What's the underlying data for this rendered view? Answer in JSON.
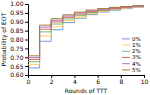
{
  "chart_data": {
    "type": "step",
    "xlabel": "Rounds of TTT",
    "ylabel": "Probability of EOT",
    "x": [
      0,
      1,
      2,
      3,
      4,
      5,
      6,
      7,
      8,
      9,
      10
    ],
    "series": [
      {
        "name": "0%",
        "color": "#7799cc",
        "values": [
          0.64,
          0.79,
          0.855,
          0.895,
          0.92,
          0.94,
          0.955,
          0.965,
          0.974,
          0.982,
          0.988
        ]
      },
      {
        "name": "1%",
        "color": "#ffcc66",
        "values": [
          0.66,
          0.82,
          0.872,
          0.906,
          0.928,
          0.946,
          0.959,
          0.969,
          0.977,
          0.984,
          0.99
        ]
      },
      {
        "name": "2%",
        "color": "#77bb77",
        "values": [
          0.675,
          0.843,
          0.887,
          0.916,
          0.936,
          0.952,
          0.963,
          0.972,
          0.98,
          0.986,
          0.991
        ]
      },
      {
        "name": "3%",
        "color": "#dd6655",
        "values": [
          0.688,
          0.858,
          0.899,
          0.925,
          0.943,
          0.957,
          0.967,
          0.975,
          0.982,
          0.987,
          0.992
        ]
      },
      {
        "name": "4%",
        "color": "#aa77cc",
        "values": [
          0.698,
          0.87,
          0.908,
          0.932,
          0.949,
          0.961,
          0.971,
          0.978,
          0.984,
          0.989,
          0.993
        ]
      },
      {
        "name": "5%",
        "color": "#aa7733",
        "values": [
          0.708,
          0.881,
          0.917,
          0.939,
          0.954,
          0.966,
          0.974,
          0.981,
          0.986,
          0.99,
          0.994
        ]
      }
    ],
    "xlim": [
      0,
      10
    ],
    "ylim": [
      0.6,
      1.0
    ],
    "xticks": [
      0,
      2,
      4,
      6,
      8,
      10
    ],
    "yticks": [
      {
        "value": 0.6,
        "label": "0.60"
      },
      0.65,
      {
        "value": 0.7,
        "label": "0.70"
      },
      0.75,
      {
        "value": 0.8,
        "label": "0.80"
      },
      0.85,
      {
        "value": 0.9,
        "label": "0.90"
      },
      0.95,
      {
        "value": 1.0,
        "label": "1.00"
      }
    ],
    "legend": "bottom-right"
  }
}
